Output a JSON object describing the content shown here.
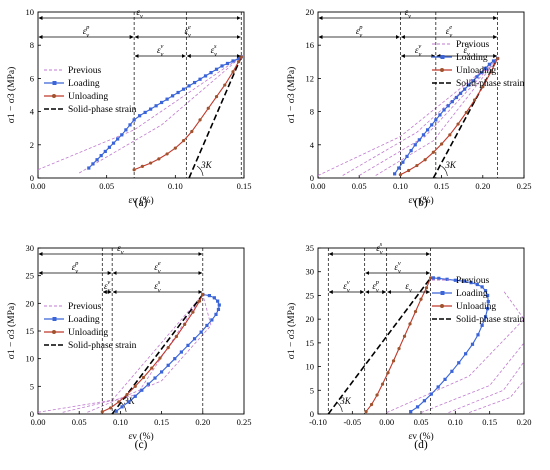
{
  "figure": {
    "colors": {
      "loading": "#3a64d8",
      "unloading": "#c0392b",
      "unloading_marker": "#a0522d",
      "previous": "#c07ad0",
      "solid_phase": "#000000"
    }
  },
  "chart_data": [
    {
      "type": "line",
      "panel_label": "(a)",
      "xlabel": "εv (%)",
      "ylabel": "σ1 − σ3 (MPa)",
      "xlim": [
        0,
        0.15
      ],
      "ylim": [
        0,
        10
      ],
      "xticks": [
        "0.00",
        "0.05",
        "0.10",
        "0.15"
      ],
      "yticks": [
        "0",
        "2",
        "4",
        "6",
        "8",
        "10"
      ],
      "legend": {
        "placement": "left-middle",
        "items": [
          "Previous",
          "Loading",
          "Unloading",
          "Solid-phase strain"
        ]
      },
      "series": [
        {
          "name": "Loading",
          "x": [
            0.037,
            0.04,
            0.043,
            0.046,
            0.049,
            0.052,
            0.055,
            0.058,
            0.061,
            0.064,
            0.067,
            0.07,
            0.074,
            0.078,
            0.082,
            0.086,
            0.09,
            0.094,
            0.098,
            0.102,
            0.106,
            0.11,
            0.114,
            0.118,
            0.122,
            0.126,
            0.13,
            0.134,
            0.138,
            0.142,
            0.146,
            0.148
          ],
          "y": [
            0.6,
            0.85,
            1.1,
            1.35,
            1.6,
            1.85,
            2.1,
            2.35,
            2.6,
            2.9,
            3.2,
            3.5,
            3.75,
            3.95,
            4.15,
            4.35,
            4.55,
            4.75,
            4.95,
            5.15,
            5.35,
            5.55,
            5.75,
            5.95,
            6.15,
            6.35,
            6.55,
            6.75,
            6.9,
            7.05,
            7.2,
            7.3
          ]
        },
        {
          "name": "Unloading",
          "x": [
            0.07,
            0.076,
            0.082,
            0.088,
            0.094,
            0.1,
            0.106,
            0.112,
            0.118,
            0.124,
            0.13,
            0.136,
            0.142,
            0.146,
            0.148
          ],
          "y": [
            0.5,
            0.7,
            0.9,
            1.15,
            1.45,
            1.8,
            2.25,
            2.8,
            3.5,
            4.2,
            4.9,
            5.6,
            6.4,
            7.0,
            7.3
          ]
        }
      ],
      "previous_curves": [
        {
          "x": [
            0.0,
            0.07,
            0.148
          ],
          "y": [
            0.5,
            2.9,
            7.3
          ]
        },
        {
          "x": [
            0.03,
            0.09,
            0.148
          ],
          "y": [
            0.3,
            3.2,
            7.3
          ]
        }
      ],
      "solid_phase_line": {
        "x": [
          0.11,
          0.148
        ],
        "y": [
          0,
          7.3
        ]
      },
      "slope_label": "3K",
      "markers_x": [
        0.07,
        0.108,
        0.148
      ],
      "annotations": {
        "top": {
          "label": "ε",
          "sub": "v",
          "sup": "",
          "x0": 0.0,
          "x1": 0.148
        },
        "split": [
          {
            "label": "ε",
            "sub": "v",
            "sup": "p",
            "x0": 0.0,
            "x1": 0.07
          },
          {
            "label": "ε",
            "sub": "v",
            "sup": "e",
            "x0": 0.07,
            "x1": 0.148
          }
        ],
        "sub": [
          {
            "label": "ε",
            "sub": "v",
            "sup": "v",
            "x0": 0.07,
            "x1": 0.108
          },
          {
            "label": "ε",
            "sub": "v",
            "sup": "s",
            "x0": 0.108,
            "x1": 0.148
          }
        ]
      }
    },
    {
      "type": "line",
      "panel_label": "(b)",
      "xlabel": "εv (%)",
      "ylabel": "σ1 − σ3 (MPa)",
      "xlim": [
        0,
        0.25
      ],
      "ylim": [
        0,
        20
      ],
      "xticks": [
        "0.00",
        "0.05",
        "0.10",
        "0.15",
        "0.20",
        "0.25"
      ],
      "yticks": [
        "0",
        "4",
        "8",
        "12",
        "16",
        "20"
      ],
      "legend": {
        "placement": "right-top",
        "items": [
          "Previous",
          "Loading",
          "Unloading",
          "Solid-phase strain"
        ]
      },
      "series": [
        {
          "name": "Loading",
          "x": [
            0.093,
            0.098,
            0.103,
            0.108,
            0.113,
            0.118,
            0.123,
            0.128,
            0.133,
            0.138,
            0.143,
            0.148,
            0.153,
            0.158,
            0.163,
            0.168,
            0.173,
            0.178,
            0.183,
            0.188,
            0.193,
            0.198,
            0.203,
            0.208,
            0.213,
            0.218
          ],
          "y": [
            0.5,
            1.2,
            1.9,
            2.6,
            3.3,
            4.0,
            4.6,
            5.2,
            5.8,
            6.4,
            7.0,
            7.6,
            8.2,
            8.7,
            9.2,
            9.7,
            10.2,
            10.7,
            11.2,
            11.7,
            12.2,
            12.7,
            13.2,
            13.7,
            14.1,
            14.4
          ]
        },
        {
          "name": "Unloading",
          "x": [
            0.1,
            0.11,
            0.12,
            0.13,
            0.14,
            0.15,
            0.16,
            0.17,
            0.18,
            0.19,
            0.2,
            0.21,
            0.218
          ],
          "y": [
            0.4,
            0.9,
            1.5,
            2.2,
            3.1,
            4.1,
            5.2,
            6.5,
            7.9,
            9.4,
            11.0,
            12.8,
            14.4
          ]
        }
      ],
      "previous_curves": [
        {
          "x": [
            0.0,
            0.1,
            0.218
          ],
          "y": [
            0.3,
            5.0,
            14.4
          ]
        },
        {
          "x": [
            0.03,
            0.12,
            0.218
          ],
          "y": [
            0.3,
            5.5,
            14.4
          ]
        },
        {
          "x": [
            0.05,
            0.13,
            0.218
          ],
          "y": [
            0.3,
            5.0,
            14.4
          ]
        },
        {
          "x": [
            0.07,
            0.14,
            0.218
          ],
          "y": [
            0.3,
            4.5,
            14.4
          ]
        }
      ],
      "solid_phase_line": {
        "x": [
          0.14,
          0.218
        ],
        "y": [
          0,
          14.4
        ]
      },
      "slope_label": "3K",
      "markers_x": [
        0.1,
        0.143,
        0.218
      ],
      "annotations": {
        "top": {
          "label": "ε",
          "sub": "v",
          "sup": "",
          "x0": 0.0,
          "x1": 0.218
        },
        "split": [
          {
            "label": "ε",
            "sub": "v",
            "sup": "p",
            "x0": 0.0,
            "x1": 0.1
          },
          {
            "label": "ε",
            "sub": "v",
            "sup": "e",
            "x0": 0.1,
            "x1": 0.218
          }
        ],
        "sub": [
          {
            "label": "ε",
            "sub": "v",
            "sup": "v",
            "x0": 0.1,
            "x1": 0.143
          },
          {
            "label": "ε",
            "sub": "v",
            "sup": "s",
            "x0": 0.143,
            "x1": 0.218
          }
        ]
      }
    },
    {
      "type": "line",
      "panel_label": "(c)",
      "xlabel": "εv (%)",
      "ylabel": "σ1 − σ3 (MPa)",
      "xlim": [
        0,
        0.25
      ],
      "ylim": [
        0,
        30
      ],
      "xticks": [
        "0.00",
        "0.05",
        "0.10",
        "0.15",
        "0.20",
        "0.25"
      ],
      "yticks": [
        "0",
        "5",
        "10",
        "15",
        "20",
        "25",
        "30"
      ],
      "legend": {
        "placement": "left-middle",
        "items": [
          "Previous",
          "Loading",
          "Unloading",
          "Solid-phase strain"
        ]
      },
      "series": [
        {
          "name": "Loading",
          "x": [
            0.095,
            0.102,
            0.11,
            0.118,
            0.126,
            0.134,
            0.142,
            0.15,
            0.158,
            0.166,
            0.174,
            0.182,
            0.19,
            0.198,
            0.205,
            0.211,
            0.216,
            0.219,
            0.22,
            0.218,
            0.214,
            0.208,
            0.2
          ],
          "y": [
            0.5,
            1.3,
            2.2,
            3.2,
            4.3,
            5.4,
            6.5,
            7.6,
            8.8,
            10.0,
            11.2,
            12.4,
            13.6,
            14.8,
            16.0,
            17.0,
            18.0,
            18.9,
            19.7,
            20.4,
            21.0,
            21.4,
            21.6
          ]
        },
        {
          "name": "Unloading",
          "x": [
            0.078,
            0.088,
            0.098,
            0.108,
            0.118,
            0.128,
            0.138,
            0.148,
            0.158,
            0.168,
            0.178,
            0.188,
            0.196,
            0.2
          ],
          "y": [
            0.4,
            1.1,
            2.2,
            3.5,
            5.0,
            6.6,
            8.3,
            10.1,
            12.0,
            14.0,
            16.2,
            18.4,
            20.4,
            21.6
          ]
        }
      ],
      "previous_curves": [
        {
          "x": [
            0.0,
            0.09,
            0.2
          ],
          "y": [
            0.3,
            2.5,
            21.6
          ]
        },
        {
          "x": [
            0.03,
            0.12,
            0.2
          ],
          "y": [
            0.3,
            3.5,
            21.6
          ]
        },
        {
          "x": [
            0.06,
            0.15,
            0.21,
            0.2
          ],
          "y": [
            0.3,
            6.0,
            16.0,
            21.6
          ]
        }
      ],
      "solid_phase_line": {
        "x": [
          0.09,
          0.2
        ],
        "y": [
          0,
          21.6
        ]
      },
      "slope_label": "3K",
      "markers_x": [
        0.078,
        0.09,
        0.2
      ],
      "annotations": {
        "top": {
          "label": "ε",
          "sub": "v",
          "sup": "",
          "x0": 0.0,
          "x1": 0.2
        },
        "split": [
          {
            "label": "ε",
            "sub": "v",
            "sup": "p",
            "x0": 0.0,
            "x1": 0.09
          },
          {
            "label": "ε",
            "sub": "v",
            "sup": "e",
            "x0": 0.09,
            "x1": 0.2
          }
        ],
        "sub": [
          {
            "label": "ε",
            "sub": "v",
            "sup": "v",
            "x0": 0.078,
            "x1": 0.09
          },
          {
            "label": "ε",
            "sub": "v",
            "sup": "s",
            "x0": 0.09,
            "x1": 0.2
          }
        ]
      }
    },
    {
      "type": "line",
      "panel_label": "(d)",
      "xlabel": "εv (%)",
      "ylabel": "σ1 − σ3 (MPa)",
      "xlim": [
        -0.1,
        0.2
      ],
      "ylim": [
        0,
        35
      ],
      "xticks": [
        "-0.10",
        "-0.05",
        "0.00",
        "0.05",
        "0.10",
        "0.15",
        "0.20"
      ],
      "yticks": [
        "0",
        "5",
        "10",
        "15",
        "20",
        "25",
        "30",
        "35"
      ],
      "legend": {
        "placement": "right-top",
        "items": [
          "Previous",
          "Loading",
          "Unloading",
          "Solid-phase strain"
        ]
      },
      "series": [
        {
          "name": "Loading",
          "x": [
            0.035,
            0.045,
            0.055,
            0.065,
            0.075,
            0.085,
            0.095,
            0.105,
            0.115,
            0.125,
            0.133,
            0.139,
            0.144,
            0.147,
            0.148,
            0.147,
            0.144,
            0.139,
            0.132,
            0.123,
            0.112,
            0.1,
            0.088,
            0.076,
            0.068
          ],
          "y": [
            0.5,
            1.5,
            2.8,
            4.2,
            5.7,
            7.3,
            9.0,
            10.8,
            12.7,
            14.7,
            16.7,
            18.7,
            20.5,
            22.2,
            23.7,
            25.0,
            26.0,
            26.8,
            27.3,
            27.7,
            28.0,
            28.2,
            28.4,
            28.6,
            28.7
          ]
        },
        {
          "name": "Unloading",
          "x": [
            -0.03,
            -0.022,
            -0.014,
            -0.006,
            0.002,
            0.01,
            0.018,
            0.026,
            0.034,
            0.042,
            0.05,
            0.058,
            0.064
          ],
          "y": [
            0.5,
            2.0,
            4.0,
            6.3,
            8.7,
            11.2,
            13.8,
            16.4,
            19.0,
            21.6,
            24.2,
            26.6,
            28.7
          ]
        }
      ],
      "previous_curves": [
        {
          "x": [
            0.0,
            0.12,
            0.2,
            0.17
          ],
          "y": [
            0.3,
            8.0,
            20.0,
            26.0
          ]
        },
        {
          "x": [
            0.05,
            0.15,
            0.2
          ],
          "y": [
            0.3,
            6.0,
            15.0
          ]
        },
        {
          "x": [
            0.09,
            0.17,
            0.2
          ],
          "y": [
            0.3,
            5.0,
            11.0
          ]
        },
        {
          "x": [
            0.12,
            0.18,
            0.2
          ],
          "y": [
            0.3,
            3.5,
            7.0
          ]
        }
      ],
      "solid_phase_line": {
        "x": [
          -0.085,
          0.064
        ],
        "y": [
          0,
          28.7
        ]
      },
      "slope_label": "3K",
      "markers_x": [
        -0.085,
        -0.032,
        0.0,
        0.064
      ],
      "annotations": {
        "top": {
          "label": "ε",
          "sub": "v",
          "sup": "s",
          "x0": -0.085,
          "x1": 0.064
        },
        "split": [
          {
            "label": "ε",
            "sub": "v",
            "sup": "v",
            "x0": -0.032,
            "x1": 0.064
          }
        ],
        "sub": [
          {
            "label": "ε",
            "sub": "v",
            "sup": "v",
            "x0": -0.085,
            "x1": -0.032
          },
          {
            "label": "ε",
            "sub": "v",
            "sup": "p",
            "x0": -0.032,
            "x1": 0.0
          },
          {
            "label": "ε",
            "sub": "v",
            "sup": "",
            "x0": 0.0,
            "x1": 0.064
          }
        ]
      }
    }
  ]
}
